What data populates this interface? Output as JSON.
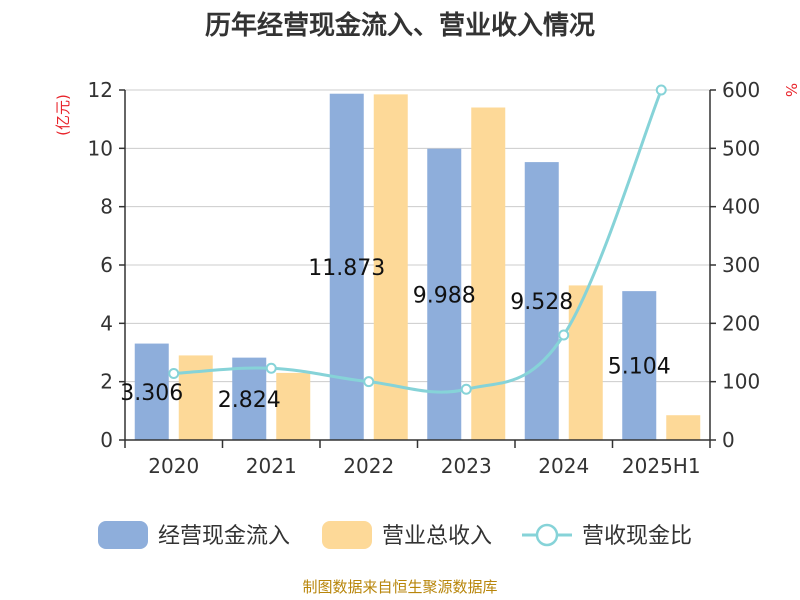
{
  "chart_data": {
    "type": "bar",
    "title": "历年经营现金流入、营业收入情况",
    "categories": [
      "2020",
      "2021",
      "2022",
      "2023",
      "2024",
      "2025H1"
    ],
    "series": [
      {
        "name": "经营现金流入",
        "type": "bar",
        "axis": "left",
        "color": "#8eaedb",
        "values": [
          3.306,
          2.824,
          11.873,
          9.988,
          9.528,
          5.104
        ],
        "labels": [
          "3.306",
          "2.824",
          "11.873",
          "9.988",
          "9.528",
          "5.104"
        ]
      },
      {
        "name": "营业总收入",
        "type": "bar",
        "axis": "left",
        "color": "#fdd998",
        "values": [
          2.9,
          2.3,
          11.85,
          11.4,
          5.3,
          0.85
        ]
      },
      {
        "name": "营收现金比",
        "type": "line",
        "axis": "right",
        "color": "#86d3d8",
        "values": [
          114,
          123,
          100,
          87,
          180,
          600
        ]
      }
    ],
    "y_left": {
      "unit": "(亿元)",
      "ylim": [
        0,
        12
      ],
      "ticks": [
        "0",
        "2",
        "4",
        "6",
        "8",
        "10",
        "12"
      ]
    },
    "y_right": {
      "unit": "%",
      "ylim": [
        0,
        600
      ],
      "ticks": [
        "0",
        "100",
        "200",
        "300",
        "400",
        "500",
        "600"
      ]
    },
    "grid": true,
    "legend_position": "bottom"
  },
  "source_text": "制图数据来自恒生聚源数据库"
}
